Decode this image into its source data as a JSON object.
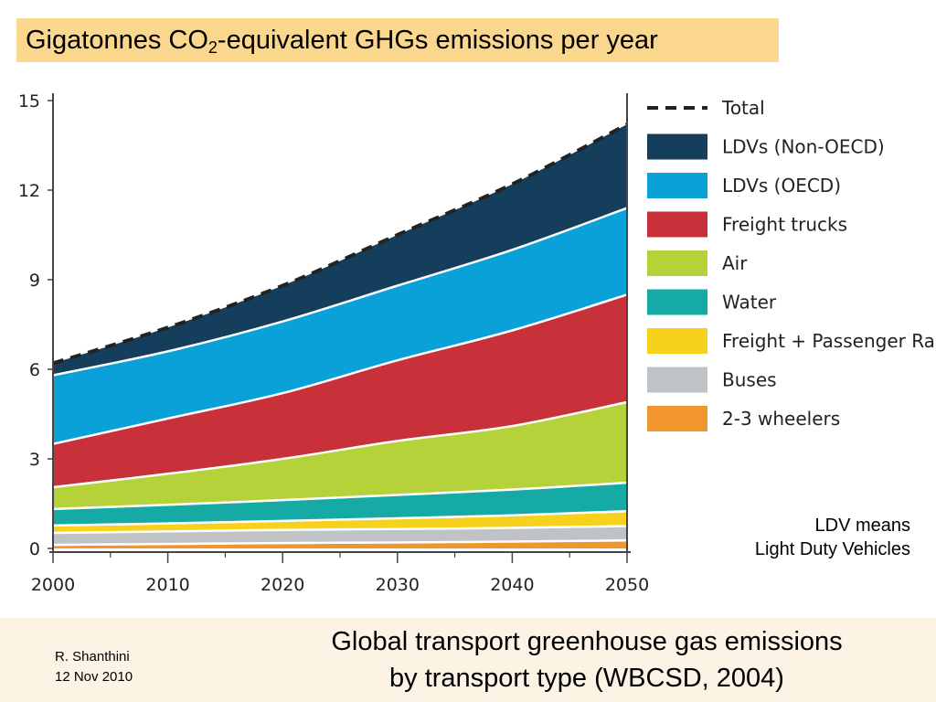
{
  "slide": {
    "title_main": "Gigatonnes CO",
    "title_sub": "2",
    "title_rest": "-equivalent GHGs emissions per year",
    "note_line1": "LDV means",
    "note_line2": "Light Duty Vehicles",
    "author_name": "R. Shanthini",
    "author_date": "12 Nov 2010",
    "caption_line1": "Global transport greenhouse gas emissions",
    "caption_line2": "by transport type (WBCSD, 2004)",
    "colors": {
      "title_bg": "#fbd78e",
      "footer_bg": "#fdf3e4"
    }
  },
  "chart_data": {
    "type": "area",
    "stacked": true,
    "x": [
      2000,
      2010,
      2020,
      2030,
      2040,
      2050
    ],
    "x_ticks": [
      "2000",
      "2010",
      "2020",
      "2030",
      "2040",
      "2050"
    ],
    "y_ticks": [
      "0",
      "3",
      "6",
      "9",
      "12",
      "15"
    ],
    "xlim": [
      2000,
      2050
    ],
    "ylim": [
      0,
      15
    ],
    "grid": false,
    "legend_position": "right",
    "series": [
      {
        "name": "2-3 wheelers",
        "color": "#f0962c",
        "values": [
          0.12,
          0.15,
          0.18,
          0.2,
          0.23,
          0.27
        ]
      },
      {
        "name": "Buses",
        "color": "#bfc3c6",
        "values": [
          0.4,
          0.42,
          0.44,
          0.45,
          0.46,
          0.48
        ]
      },
      {
        "name": "Freight + Passenger Rail",
        "color": "#f7d21c",
        "values": [
          0.25,
          0.27,
          0.3,
          0.36,
          0.42,
          0.5
        ]
      },
      {
        "name": "Water",
        "color": "#15aba4",
        "values": [
          0.55,
          0.62,
          0.7,
          0.78,
          0.86,
          0.95
        ]
      },
      {
        "name": "Air",
        "color": "#b6d23a",
        "values": [
          0.73,
          1.04,
          1.38,
          1.81,
          2.13,
          2.7
        ]
      },
      {
        "name": "Freight trucks",
        "color": "#c8303a",
        "values": [
          1.45,
          1.85,
          2.2,
          2.7,
          3.2,
          3.6
        ]
      },
      {
        "name": "LDVs (OECD)",
        "color": "#0aa0d8",
        "values": [
          2.3,
          2.25,
          2.4,
          2.5,
          2.7,
          2.9
        ]
      },
      {
        "name": "LDVs (Non-OECD)",
        "color": "#153e5c",
        "values": [
          0.4,
          0.8,
          1.2,
          1.7,
          2.2,
          2.8
        ]
      }
    ],
    "total": {
      "name": "Total",
      "values": [
        6.2,
        7.4,
        8.8,
        10.5,
        12.2,
        14.2
      ]
    }
  }
}
